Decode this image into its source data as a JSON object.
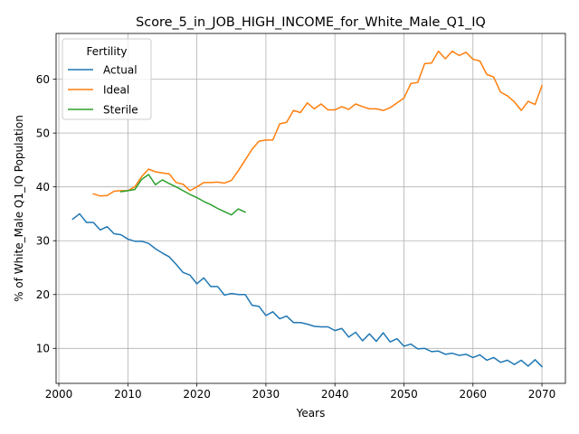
{
  "chart_data": {
    "type": "line",
    "title": "Score_5_in_JOB_HIGH_INCOME_for_White_Male_Q1_IQ",
    "xlabel": "Years",
    "ylabel": "% of White_Male Q1_IQ Population",
    "xlim": [
      1999.6,
      2073.4
    ],
    "ylim": [
      3.5,
      68.5
    ],
    "xticks": [
      2000,
      2010,
      2020,
      2030,
      2040,
      2050,
      2060,
      2070
    ],
    "yticks": [
      10,
      20,
      30,
      40,
      50,
      60
    ],
    "grid": true,
    "legend": {
      "title": "Fertility",
      "placement": "upper left"
    },
    "series": [
      {
        "name": "Actual",
        "color": "#1f77b4",
        "x": [
          2002,
          2003,
          2004,
          2005,
          2006,
          2007,
          2008,
          2009,
          2010,
          2011,
          2012,
          2013,
          2014,
          2015,
          2016,
          2017,
          2018,
          2019,
          2020,
          2021,
          2022,
          2023,
          2024,
          2025,
          2026,
          2027,
          2028,
          2029,
          2030,
          2031,
          2032,
          2033,
          2034,
          2035,
          2036,
          2037,
          2038,
          2039,
          2040,
          2041,
          2042,
          2043,
          2044,
          2045,
          2046,
          2047,
          2048,
          2049,
          2050,
          2051,
          2052,
          2053,
          2054,
          2055,
          2056,
          2057,
          2058,
          2059,
          2060,
          2061,
          2062,
          2063,
          2064,
          2065,
          2066,
          2067,
          2068,
          2069,
          2070
        ],
        "values": [
          34.0,
          35.0,
          33.4,
          33.4,
          32.0,
          32.6,
          31.3,
          31.1,
          30.3,
          29.9,
          29.9,
          29.5,
          28.5,
          27.7,
          27.0,
          25.6,
          24.1,
          23.6,
          22.0,
          23.1,
          21.5,
          21.5,
          19.9,
          20.2,
          20.0,
          20.0,
          18.0,
          17.8,
          16.1,
          16.8,
          15.5,
          16.0,
          14.8,
          14.8,
          14.5,
          14.1,
          14.0,
          14.0,
          13.3,
          13.7,
          12.1,
          13.0,
          11.4,
          12.7,
          11.3,
          12.9,
          11.2,
          11.8,
          10.4,
          10.8,
          9.9,
          10.0,
          9.4,
          9.5,
          8.9,
          9.1,
          8.7,
          8.9,
          8.3,
          8.8,
          7.8,
          8.3,
          7.4,
          7.8,
          7.0,
          7.8,
          6.7,
          7.9,
          6.6
        ]
      },
      {
        "name": "Ideal",
        "color": "#ff7f0e",
        "x": [
          2005,
          2006,
          2007,
          2008,
          2009,
          2010,
          2011,
          2012,
          2013,
          2014,
          2015,
          2016,
          2017,
          2018,
          2019,
          2020,
          2021,
          2022,
          2023,
          2024,
          2025,
          2026,
          2027,
          2028,
          2029,
          2030,
          2031,
          2032,
          2033,
          2034,
          2035,
          2036,
          2037,
          2038,
          2039,
          2040,
          2041,
          2042,
          2043,
          2044,
          2045,
          2046,
          2047,
          2048,
          2049,
          2050,
          2051,
          2052,
          2053,
          2054,
          2055,
          2056,
          2057,
          2058,
          2059,
          2060,
          2061,
          2062,
          2063,
          2064,
          2065,
          2066,
          2067,
          2068,
          2069,
          2070
        ],
        "values": [
          38.7,
          38.3,
          38.4,
          39.2,
          39.3,
          39.3,
          40.0,
          41.9,
          43.3,
          42.8,
          42.6,
          42.4,
          40.8,
          40.5,
          39.3,
          40.0,
          40.8,
          40.8,
          40.9,
          40.7,
          41.2,
          43.0,
          45.0,
          47.0,
          48.5,
          48.7,
          48.7,
          51.7,
          52.0,
          54.2,
          53.8,
          55.6,
          54.5,
          55.4,
          54.3,
          54.3,
          54.9,
          54.4,
          55.4,
          54.9,
          54.5,
          54.5,
          54.2,
          54.7,
          55.6,
          56.5,
          59.2,
          59.4,
          62.9,
          63.0,
          65.2,
          63.8,
          65.2,
          64.4,
          65.0,
          63.7,
          63.4,
          60.9,
          60.4,
          57.6,
          56.9,
          55.8,
          54.2,
          55.9,
          55.3,
          58.8
        ]
      },
      {
        "name": "Sterile",
        "color": "#2ca02c",
        "x": [
          2009,
          2010,
          2011,
          2012,
          2013,
          2014,
          2015,
          2016,
          2017,
          2018,
          2019,
          2020,
          2021,
          2022,
          2023,
          2024,
          2025,
          2026,
          2027
        ],
        "values": [
          39.1,
          39.3,
          39.5,
          41.4,
          42.3,
          40.4,
          41.3,
          40.6,
          40.0,
          39.3,
          38.6,
          38.0,
          37.3,
          36.7,
          36.0,
          35.4,
          34.8,
          35.9,
          35.3
        ]
      }
    ]
  }
}
